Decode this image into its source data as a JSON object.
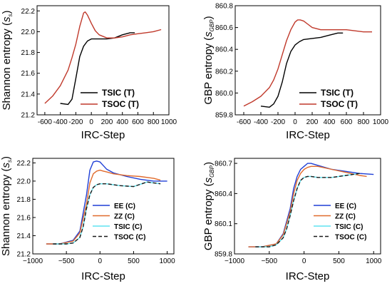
{
  "chart_data": [
    {
      "type": "line",
      "panel": "top-left",
      "xlabel": "IRC-Step",
      "ylabel": "Shannon entropy",
      "ylabel_symbol": "s",
      "ylabel_sub": "s",
      "xlim": [
        -700,
        1000
      ],
      "ylim": [
        21.2,
        22.25
      ],
      "xticks": [
        "-600",
        "-400",
        "-200",
        "0",
        "200",
        "400",
        "600",
        "800",
        "1000"
      ],
      "xtick_values": [
        -600,
        -400,
        -200,
        0,
        200,
        400,
        600,
        800,
        1000
      ],
      "yticks": [
        "21.2",
        "21.4",
        "21.6",
        "21.8",
        "22.0",
        "22.2"
      ],
      "ytick_values": [
        21.2,
        21.4,
        21.6,
        21.8,
        22.0,
        22.2
      ],
      "legend_position": "bottom-right",
      "series": [
        {
          "name": "TSIC (T)",
          "color": "#000000",
          "dash": "",
          "x": [
            -400,
            -300,
            -250,
            -200,
            -150,
            -100,
            -50,
            0,
            50,
            100,
            200,
            300,
            400,
            500,
            560
          ],
          "y": [
            21.31,
            21.3,
            21.35,
            21.55,
            21.76,
            21.86,
            21.91,
            21.93,
            21.93,
            21.93,
            21.93,
            21.94,
            21.97,
            21.99,
            21.99
          ]
        },
        {
          "name": "TSOC (T)",
          "color": "#c0392b",
          "dash": "",
          "x": [
            -600,
            -500,
            -400,
            -300,
            -250,
            -200,
            -150,
            -100,
            -80,
            -50,
            0,
            50,
            100,
            200,
            300,
            400,
            500,
            600,
            700,
            800,
            900
          ],
          "y": [
            21.31,
            21.38,
            21.48,
            21.63,
            21.75,
            21.88,
            22.05,
            22.18,
            22.19,
            22.16,
            22.08,
            22.01,
            21.97,
            21.94,
            21.94,
            21.95,
            21.97,
            21.98,
            21.99,
            22.0,
            22.02
          ]
        }
      ]
    },
    {
      "type": "line",
      "panel": "top-right",
      "xlabel": "IRC-Step",
      "ylabel": "GBP entropy",
      "ylabel_symbol": "s",
      "ylabel_sub": "GBP",
      "xlim": [
        -700,
        1000
      ],
      "ylim": [
        859.8,
        860.8
      ],
      "xticks": [
        "-600",
        "-400",
        "-200",
        "0",
        "200",
        "400",
        "600",
        "800",
        "1000"
      ],
      "xtick_values": [
        -600,
        -400,
        -200,
        0,
        200,
        400,
        600,
        800,
        1000
      ],
      "yticks": [
        "859.8",
        "860.0",
        "860.2",
        "860.4",
        "860.6",
        "860.8"
      ],
      "ytick_values": [
        859.8,
        860.0,
        860.2,
        860.4,
        860.6,
        860.8
      ],
      "legend_position": "bottom-right",
      "series": [
        {
          "name": "TSIC (T)",
          "color": "#000000",
          "dash": "",
          "x": [
            -400,
            -300,
            -250,
            -200,
            -150,
            -100,
            -50,
            0,
            50,
            100,
            200,
            300,
            400,
            500,
            560
          ],
          "y": [
            859.88,
            859.87,
            859.9,
            859.97,
            860.1,
            860.27,
            860.38,
            860.44,
            860.47,
            860.49,
            860.5,
            860.51,
            860.53,
            860.55,
            860.55
          ]
        },
        {
          "name": "TSOC (T)",
          "color": "#c0392b",
          "dash": "",
          "x": [
            -600,
            -500,
            -400,
            -300,
            -250,
            -200,
            -150,
            -100,
            -50,
            0,
            30,
            60,
            100,
            150,
            200,
            300,
            400,
            500,
            600,
            700,
            800,
            900
          ],
          "y": [
            859.88,
            859.92,
            859.97,
            860.05,
            860.12,
            860.22,
            860.35,
            860.48,
            860.58,
            860.65,
            860.67,
            860.67,
            860.66,
            860.63,
            860.6,
            860.58,
            860.58,
            860.58,
            860.58,
            860.57,
            860.56,
            860.56
          ]
        }
      ]
    },
    {
      "type": "line",
      "panel": "bottom-left",
      "xlabel": "IRC-Step",
      "ylabel": "Shannon entropy",
      "ylabel_symbol": "s",
      "ylabel_sub": "s",
      "xlim": [
        -1000,
        1100
      ],
      "ylim": [
        21.2,
        22.25
      ],
      "xticks": [
        "−1000",
        "−500",
        "0",
        "500",
        "1000"
      ],
      "xtick_values": [
        -1000,
        -500,
        0,
        500,
        1000
      ],
      "yticks": [
        "21.2",
        "21.4",
        "21.6",
        "21.8",
        "22.0",
        "22.2"
      ],
      "ytick_values": [
        21.2,
        21.4,
        21.6,
        21.8,
        22.0,
        22.2
      ],
      "legend_position": "bottom-right",
      "series": [
        {
          "name": "EE (C)",
          "color": "#1f3fd6",
          "dash": "",
          "x": [
            -800,
            -600,
            -400,
            -300,
            -200,
            -150,
            -100,
            -50,
            0,
            50,
            100,
            200,
            400,
            600,
            800,
            1000
          ],
          "y": [
            21.31,
            21.31,
            21.35,
            21.45,
            21.85,
            22.12,
            22.21,
            22.22,
            22.21,
            22.17,
            22.13,
            22.09,
            22.05,
            22.02,
            22.0,
            22.0
          ]
        },
        {
          "name": "ZZ (C)",
          "color": "#e06a2c",
          "dash": "",
          "x": [
            -800,
            -600,
            -400,
            -300,
            -200,
            -150,
            -100,
            -50,
            0,
            50,
            100,
            200,
            400,
            600,
            800,
            900
          ],
          "y": [
            21.31,
            21.31,
            21.34,
            21.43,
            21.75,
            21.98,
            22.08,
            22.11,
            22.12,
            22.11,
            22.1,
            22.08,
            22.06,
            22.05,
            22.03,
            22.01
          ]
        },
        {
          "name": "TSIC (C)",
          "color": "#5fe3f0",
          "dash": "",
          "x": [
            -700,
            -500,
            -400,
            -300,
            -250,
            -200,
            -150,
            -100,
            -50,
            0,
            50,
            100,
            200,
            300,
            500,
            700,
            900
          ],
          "y": [
            21.31,
            21.31,
            21.32,
            21.38,
            21.5,
            21.7,
            21.85,
            21.93,
            21.96,
            21.97,
            21.97,
            21.97,
            21.96,
            21.95,
            21.94,
            21.99,
            21.97
          ]
        },
        {
          "name": "TSOC (C)",
          "color": "#1a1a1a",
          "dash": "5,3",
          "x": [
            -700,
            -500,
            -400,
            -300,
            -250,
            -200,
            -150,
            -100,
            -50,
            0,
            50,
            100,
            200,
            300,
            500,
            700,
            900
          ],
          "y": [
            21.31,
            21.31,
            21.32,
            21.38,
            21.5,
            21.7,
            21.85,
            21.93,
            21.96,
            21.97,
            21.97,
            21.97,
            21.96,
            21.95,
            21.94,
            21.99,
            21.97
          ]
        }
      ]
    },
    {
      "type": "line",
      "panel": "bottom-right",
      "xlabel": "IRC-Step",
      "ylabel": "GBP entropy",
      "ylabel_symbol": "s",
      "ylabel_sub": "GBP",
      "xlim": [
        -1000,
        1100
      ],
      "ylim": [
        859.8,
        860.75
      ],
      "xticks": [
        "−1000",
        "−500",
        "0",
        "500",
        "1000"
      ],
      "xtick_values": [
        -1000,
        -500,
        0,
        500,
        1000
      ],
      "yticks": [
        "859.8",
        "860.1",
        "860.4",
        "860.7"
      ],
      "ytick_values": [
        859.8,
        860.1,
        860.4,
        860.7
      ],
      "legend_position": "bottom-right",
      "series": [
        {
          "name": "EE (C)",
          "color": "#1f3fd6",
          "dash": "",
          "x": [
            -800,
            -600,
            -400,
            -300,
            -200,
            -150,
            -100,
            -50,
            0,
            50,
            100,
            200,
            400,
            600,
            800,
            1000
          ],
          "y": [
            859.87,
            859.87,
            859.9,
            860.0,
            860.25,
            860.45,
            860.57,
            860.64,
            860.67,
            860.7,
            860.7,
            860.68,
            860.64,
            860.62,
            860.6,
            860.59
          ]
        },
        {
          "name": "ZZ (C)",
          "color": "#e06a2c",
          "dash": "",
          "x": [
            -800,
            -600,
            -400,
            -300,
            -200,
            -150,
            -100,
            -50,
            0,
            50,
            100,
            200,
            400,
            600,
            800,
            900
          ],
          "y": [
            859.87,
            859.87,
            859.9,
            859.99,
            860.22,
            860.4,
            860.53,
            860.6,
            860.64,
            860.66,
            860.67,
            860.67,
            860.64,
            860.61,
            860.58,
            860.57
          ]
        },
        {
          "name": "TSIC (C)",
          "color": "#5fe3f0",
          "dash": "",
          "x": [
            -700,
            -500,
            -400,
            -300,
            -250,
            -200,
            -150,
            -100,
            -50,
            0,
            50,
            100,
            200,
            400,
            600,
            800
          ],
          "y": [
            859.87,
            859.87,
            859.89,
            859.96,
            860.05,
            860.18,
            860.33,
            860.45,
            860.53,
            860.56,
            860.57,
            860.57,
            860.56,
            860.56,
            860.58,
            860.6
          ]
        },
        {
          "name": "TSOC (C)",
          "color": "#1a1a1a",
          "dash": "5,3",
          "x": [
            -700,
            -500,
            -400,
            -300,
            -250,
            -200,
            -150,
            -100,
            -50,
            0,
            50,
            100,
            200,
            400,
            600,
            800
          ],
          "y": [
            859.87,
            859.87,
            859.89,
            859.96,
            860.05,
            860.18,
            860.33,
            860.45,
            860.53,
            860.56,
            860.57,
            860.57,
            860.56,
            860.56,
            860.58,
            860.6
          ]
        }
      ]
    }
  ]
}
